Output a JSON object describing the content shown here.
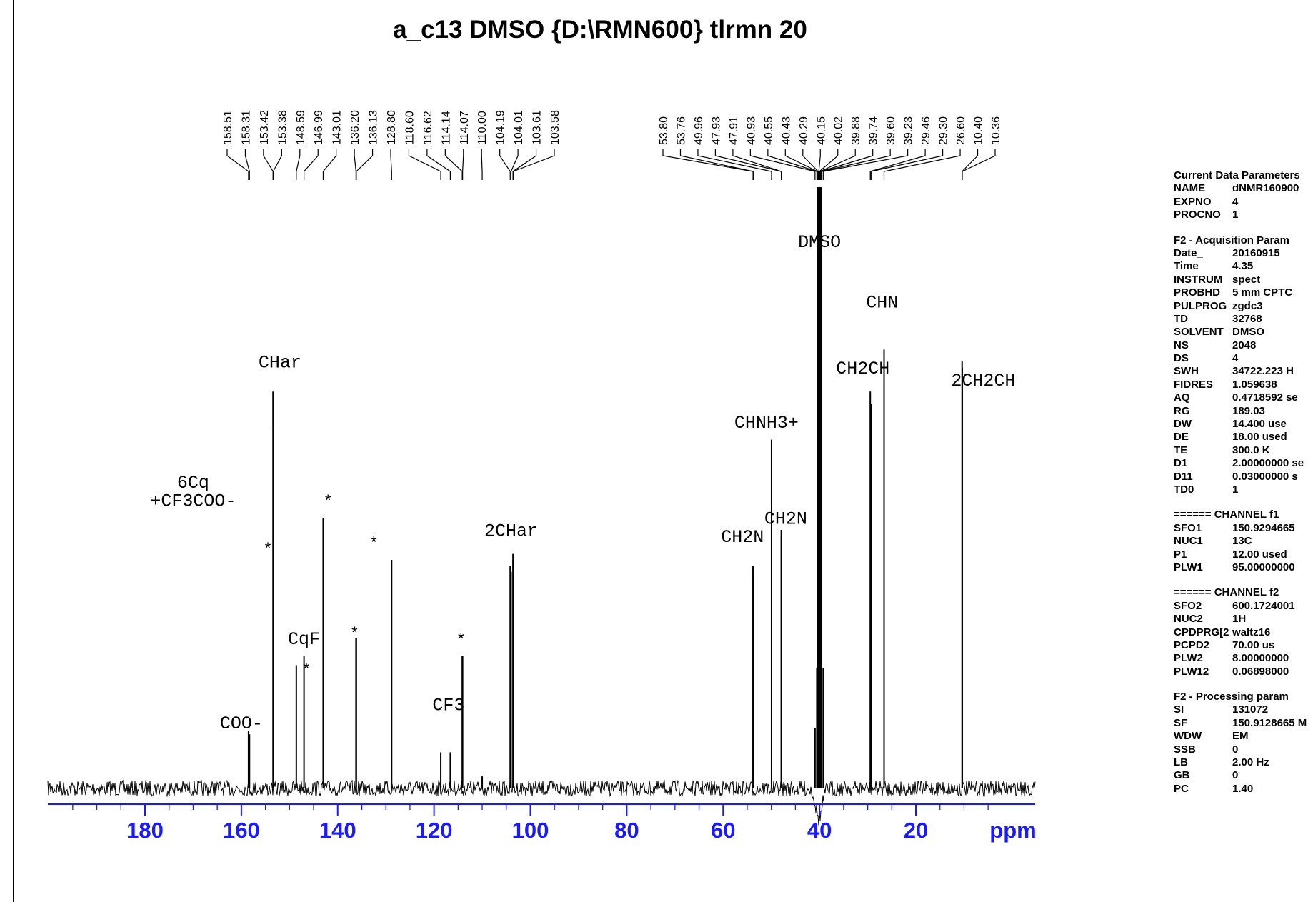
{
  "title": "a_c13 DMSO {D:\\RMN600} tlrmn 20",
  "chart_data": {
    "type": "line",
    "title": "a_c13 DMSO {D:\\RMN600} tlrmn 20",
    "xlabel": "ppm",
    "xlim": [
      200,
      0
    ],
    "xticks": [
      180,
      160,
      140,
      120,
      100,
      80,
      60,
      40,
      20
    ],
    "ylim": [
      -0.05,
      1.0
    ],
    "grid": false,
    "peaks": [
      {
        "ppm": 158.51,
        "height": 0.095
      },
      {
        "ppm": 158.31,
        "height": 0.09
      },
      {
        "ppm": 153.42,
        "height": 0.66
      },
      {
        "ppm": 153.38,
        "height": 0.6
      },
      {
        "ppm": 148.59,
        "height": 0.205
      },
      {
        "ppm": 146.99,
        "height": 0.22
      },
      {
        "ppm": 143.01,
        "height": 0.45
      },
      {
        "ppm": 136.2,
        "height": 0.25
      },
      {
        "ppm": 136.13,
        "height": 0.25
      },
      {
        "ppm": 128.8,
        "height": 0.38
      },
      {
        "ppm": 118.6,
        "height": 0.06
      },
      {
        "ppm": 116.62,
        "height": 0.06
      },
      {
        "ppm": 114.14,
        "height": 0.22
      },
      {
        "ppm": 114.07,
        "height": 0.22
      },
      {
        "ppm": 110.0,
        "height": 0.02
      },
      {
        "ppm": 104.19,
        "height": 0.37
      },
      {
        "ppm": 104.01,
        "height": 0.36
      },
      {
        "ppm": 103.61,
        "height": 0.39
      },
      {
        "ppm": 103.58,
        "height": 0.38
      },
      {
        "ppm": 53.8,
        "height": 0.37
      },
      {
        "ppm": 53.76,
        "height": 0.36
      },
      {
        "ppm": 49.96,
        "height": 0.58
      },
      {
        "ppm": 47.93,
        "height": 0.43
      },
      {
        "ppm": 47.91,
        "height": 0.42
      },
      {
        "ppm": 40.93,
        "height": 0.1
      },
      {
        "ppm": 40.55,
        "height": 0.2
      },
      {
        "ppm": 40.43,
        "height": 1.0
      },
      {
        "ppm": 40.29,
        "height": 1.0
      },
      {
        "ppm": 40.15,
        "height": 1.0
      },
      {
        "ppm": 40.02,
        "height": 1.0
      },
      {
        "ppm": 39.88,
        "height": 1.0
      },
      {
        "ppm": 39.74,
        "height": 1.0
      },
      {
        "ppm": 39.6,
        "height": 0.95
      },
      {
        "ppm": 39.23,
        "height": 0.2
      },
      {
        "ppm": 29.46,
        "height": 0.66
      },
      {
        "ppm": 29.3,
        "height": 0.64
      },
      {
        "ppm": 26.6,
        "height": 0.73
      },
      {
        "ppm": 10.4,
        "height": 0.71
      },
      {
        "ppm": 10.36,
        "height": 0.7
      }
    ],
    "peak_labels": [
      "158.51",
      "158.31",
      "153.42",
      "153.38",
      "148.59",
      "146.99",
      "143.01",
      "136.20",
      "136.13",
      "128.80",
      "118.60",
      "116.62",
      "114.14",
      "114.07",
      "110.00",
      "104.19",
      "104.01",
      "103.61",
      "103.58",
      "53.80",
      "53.76",
      "49.96",
      "47.93",
      "47.91",
      "40.93",
      "40.55",
      "40.43",
      "40.29",
      "40.15",
      "40.02",
      "39.88",
      "39.74",
      "39.60",
      "39.23",
      "29.46",
      "29.30",
      "26.60",
      "10.40",
      "10.36"
    ],
    "annotations": [
      {
        "text": "6Cq",
        "ppm": 170,
        "height": 0.5
      },
      {
        "text": "+CF3COO-",
        "ppm": 170,
        "height": 0.47
      },
      {
        "text": "CHar",
        "ppm": 152,
        "height": 0.7
      },
      {
        "text": "COO-",
        "ppm": 160,
        "height": 0.1
      },
      {
        "text": "CqF",
        "ppm": 147,
        "height": 0.24
      },
      {
        "text": "CF3",
        "ppm": 117,
        "height": 0.13
      },
      {
        "text": "2CHar",
        "ppm": 104,
        "height": 0.42
      },
      {
        "text": "CHNH3+",
        "ppm": 51,
        "height": 0.6
      },
      {
        "text": "CH2N",
        "ppm": 56,
        "height": 0.41
      },
      {
        "text": "CH2N",
        "ppm": 47,
        "height": 0.44
      },
      {
        "text": "DMSO",
        "ppm": 40,
        "height": 0.9
      },
      {
        "text": "CHN",
        "ppm": 27,
        "height": 0.8
      },
      {
        "text": "CH2CH",
        "ppm": 31,
        "height": 0.69
      },
      {
        "text": "2CH2CH",
        "ppm": 6,
        "height": 0.67
      }
    ],
    "stars": [
      {
        "ppm": 154.5,
        "height": 0.39
      },
      {
        "ppm": 142,
        "height": 0.47
      },
      {
        "ppm": 132.5,
        "height": 0.4
      },
      {
        "ppm": 146.5,
        "height": 0.19
      },
      {
        "ppm": 136.5,
        "height": 0.25
      },
      {
        "ppm": 114.4,
        "height": 0.24
      }
    ],
    "star_symbol": "*"
  },
  "parameters": {
    "sections": [
      {
        "header": "Current Data Parameters",
        "rows": [
          {
            "key": "NAME",
            "value": "dNMR160900"
          },
          {
            "key": "EXPNO",
            "value": "4"
          },
          {
            "key": "PROCNO",
            "value": "1"
          }
        ]
      },
      {
        "header": "F2 - Acquisition Param",
        "rows": [
          {
            "key": "Date_",
            "value": "20160915"
          },
          {
            "key": "Time",
            "value": "4.35"
          },
          {
            "key": "INSTRUM",
            "value": "spect"
          },
          {
            "key": "PROBHD",
            "value": "5 mm CPTC"
          },
          {
            "key": "PULPROG",
            "value": "zgdc3"
          },
          {
            "key": "TD",
            "value": "32768"
          },
          {
            "key": "SOLVENT",
            "value": "DMSO"
          },
          {
            "key": "NS",
            "value": "2048"
          },
          {
            "key": "DS",
            "value": "4"
          },
          {
            "key": "SWH",
            "value": "34722.223 H"
          },
          {
            "key": "FIDRES",
            "value": "1.059638"
          },
          {
            "key": "AQ",
            "value": "0.4718592 se"
          },
          {
            "key": "RG",
            "value": "189.03"
          },
          {
            "key": "DW",
            "value": "14.400 use"
          },
          {
            "key": "DE",
            "value": "18.00 used"
          },
          {
            "key": "TE",
            "value": "300.0 K"
          },
          {
            "key": "D1",
            "value": "2.00000000 se"
          },
          {
            "key": "D11",
            "value": "0.03000000 s"
          },
          {
            "key": "TD0",
            "value": "1"
          }
        ]
      },
      {
        "header": "====== CHANNEL f1",
        "rows": [
          {
            "key": "SFO1",
            "value": "150.9294665"
          },
          {
            "key": "NUC1",
            "value": "13C"
          },
          {
            "key": "P1",
            "value": "12.00 used"
          },
          {
            "key": "PLW1",
            "value": "95.00000000"
          }
        ]
      },
      {
        "header": "====== CHANNEL f2",
        "rows": [
          {
            "key": "SFO2",
            "value": "600.1724001"
          },
          {
            "key": "NUC2",
            "value": "1H"
          },
          {
            "key": "CPDPRG[2",
            "value": "waltz16"
          },
          {
            "key": "PCPD2",
            "value": "70.00 us"
          },
          {
            "key": "PLW2",
            "value": "8.00000000"
          },
          {
            "key": "PLW12",
            "value": "0.06898000"
          }
        ]
      },
      {
        "header": "F2 - Processing param",
        "rows": [
          {
            "key": "SI",
            "value": "131072"
          },
          {
            "key": "SF",
            "value": "150.9128665 M"
          },
          {
            "key": "WDW",
            "value": "EM"
          },
          {
            "key": "SSB",
            "value": "0"
          },
          {
            "key": "LB",
            "value": "2.00 Hz"
          },
          {
            "key": "GB",
            "value": "0"
          },
          {
            "key": "PC",
            "value": "1.40"
          }
        ]
      }
    ]
  },
  "colors": {
    "axis": "#1a1aff",
    "trace": "#000000",
    "text": "#000000"
  }
}
